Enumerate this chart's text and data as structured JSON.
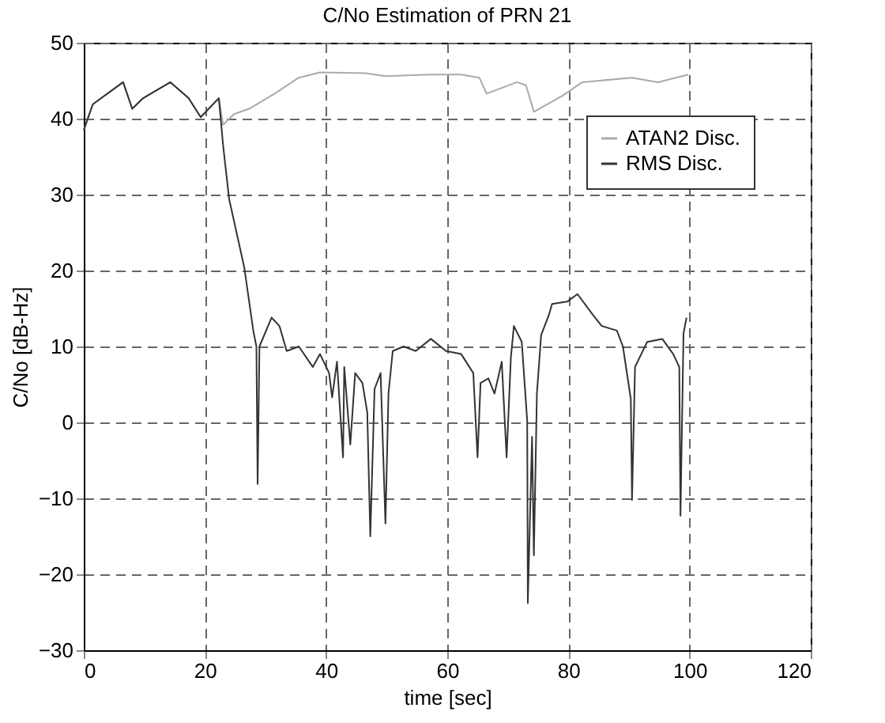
{
  "chart_data": {
    "type": "line",
    "title": "C/No Estimation of PRN 21",
    "xlabel": "time [sec]",
    "ylabel": "C/No [dB-Hz]",
    "xlim": [
      0,
      120
    ],
    "xticks": [
      0,
      20,
      40,
      60,
      80,
      100,
      120
    ],
    "ylim": [
      -30,
      50
    ],
    "yticks": [
      -30,
      -20,
      -10,
      0,
      10,
      20,
      30,
      40,
      50
    ],
    "grid": true,
    "legend": "top right",
    "series": [
      {
        "name": "ATAN2 Disc.",
        "color": "#aaaaaa",
        "x": [
          0,
          1.5,
          6.5,
          8,
          9.8,
          14.3,
          17.3,
          19.3,
          22.3,
          23,
          24.8,
          27.3,
          31.5,
          35.5,
          39,
          46.5,
          49.8,
          57.3,
          62.3,
          65.3,
          66.5,
          71.5,
          73,
          74.3,
          79,
          82.3,
          90.5,
          94.8,
          99.8
        ],
        "values": [
          38.5,
          41.9,
          44.8,
          41.3,
          42.7,
          44.8,
          42.7,
          40.2,
          42.7,
          39.2,
          40.6,
          41.3,
          43.3,
          45.4,
          46.1,
          46,
          45.6,
          45.8,
          45.8,
          45.4,
          43.3,
          44.8,
          44.4,
          40.9,
          43,
          44.8,
          45.4,
          44.8,
          45.8
        ]
      },
      {
        "name": "RMS Disc.",
        "color": "#333333",
        "x": [
          0,
          1.5,
          6.5,
          8,
          9.8,
          14.3,
          17.3,
          19.3,
          22.3,
          23,
          24,
          26.5,
          28,
          28.5,
          28.7,
          29,
          31,
          32.3,
          33.5,
          35.5,
          37.8,
          39,
          40.5,
          41,
          41.8,
          42.8,
          43,
          44,
          44.8,
          46,
          46.8,
          47.3,
          48,
          49,
          49.8,
          50.3,
          51,
          52.8,
          54.8,
          57.3,
          59.8,
          62.3,
          64.3,
          65,
          65.5,
          66.8,
          67.8,
          69,
          69.8,
          70.5,
          71,
          72.3,
          73.2,
          73.3,
          74,
          74.3,
          74.8,
          75.5,
          76.8,
          77.3,
          79.8,
          81.5,
          84,
          85.5,
          88,
          89,
          90.3,
          90.5,
          91,
          93,
          95.5,
          97.3,
          98.3,
          98.5,
          99,
          99.5
        ],
        "values": [
          38.5,
          41.9,
          44.8,
          41.3,
          42.7,
          44.8,
          42.7,
          40.2,
          42.7,
          36.5,
          29.4,
          20.4,
          12,
          10,
          -8.1,
          10,
          13.8,
          12.7,
          9.4,
          10,
          7.3,
          9,
          6.5,
          3.3,
          8,
          -4.6,
          7.3,
          -2.9,
          6.5,
          5.2,
          1.3,
          -15,
          4.4,
          6.5,
          -13.3,
          3.8,
          9.4,
          10,
          9.4,
          11,
          9.4,
          9,
          6.5,
          -4.6,
          5.2,
          5.8,
          3.8,
          8,
          -4.6,
          8.5,
          12.7,
          10.6,
          0.2,
          -23.8,
          -1.9,
          -17.5,
          3.8,
          11.5,
          14.2,
          15.6,
          15.9,
          16.9,
          14.2,
          12.7,
          12.1,
          10,
          3.1,
          -10.2,
          7.3,
          10.6,
          11,
          9,
          7.3,
          -12.3,
          11.7,
          13.8
        ]
      }
    ]
  }
}
